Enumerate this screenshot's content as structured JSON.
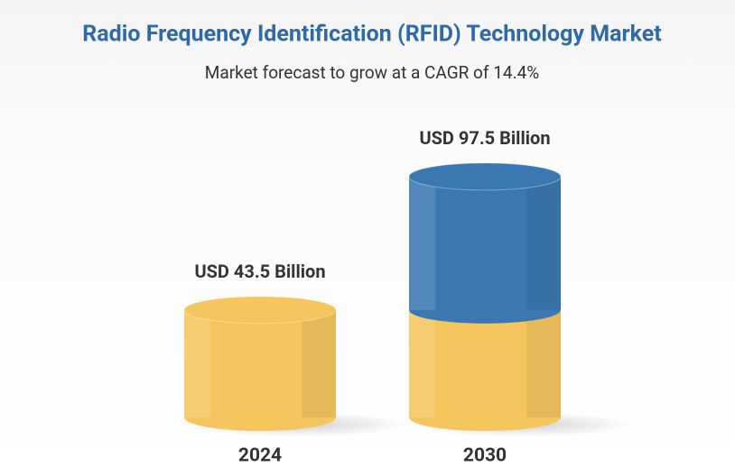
{
  "chart_data": {
    "type": "bar",
    "title": "Radio Frequency Identification (RFID) Technology Market",
    "subtitle": "Market forecast to grow at a CAGR of 14.4%",
    "categories": [
      "2024",
      "2030"
    ],
    "values": [
      43.5,
      97.5
    ],
    "value_labels": [
      "USD 43.5 Billion",
      "USD 97.5 Billion"
    ],
    "colors": [
      "#f5c55e",
      "#3b78b2"
    ]
  }
}
